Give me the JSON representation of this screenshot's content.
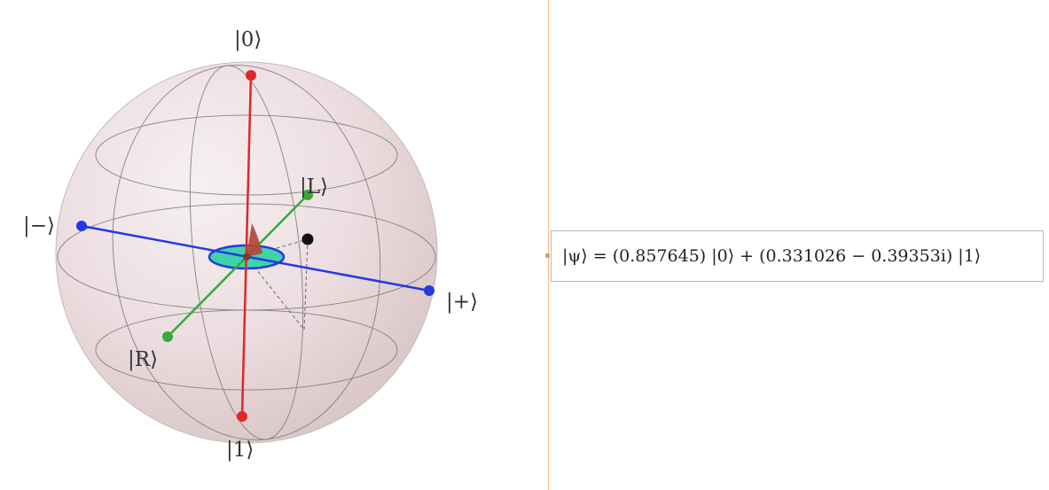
{
  "sphere": {
    "labels": {
      "zero": "|0⟩",
      "one": "|1⟩",
      "plus": "|+⟩",
      "minus": "|−⟩",
      "left": "|L⟩",
      "right": "|R⟩"
    },
    "colors": {
      "z_axis": "#e0262a",
      "x_axis": "#2438e6",
      "y_axis": "#3aa83a",
      "state_point": "#111111",
      "phase_disc": "#3ed3a8",
      "theta_wedge": "#b4463a"
    }
  },
  "state": {
    "expression": "|ψ⟩ = (0.857645) |0⟩ + (0.331026  − 0.39353i) |1⟩"
  }
}
